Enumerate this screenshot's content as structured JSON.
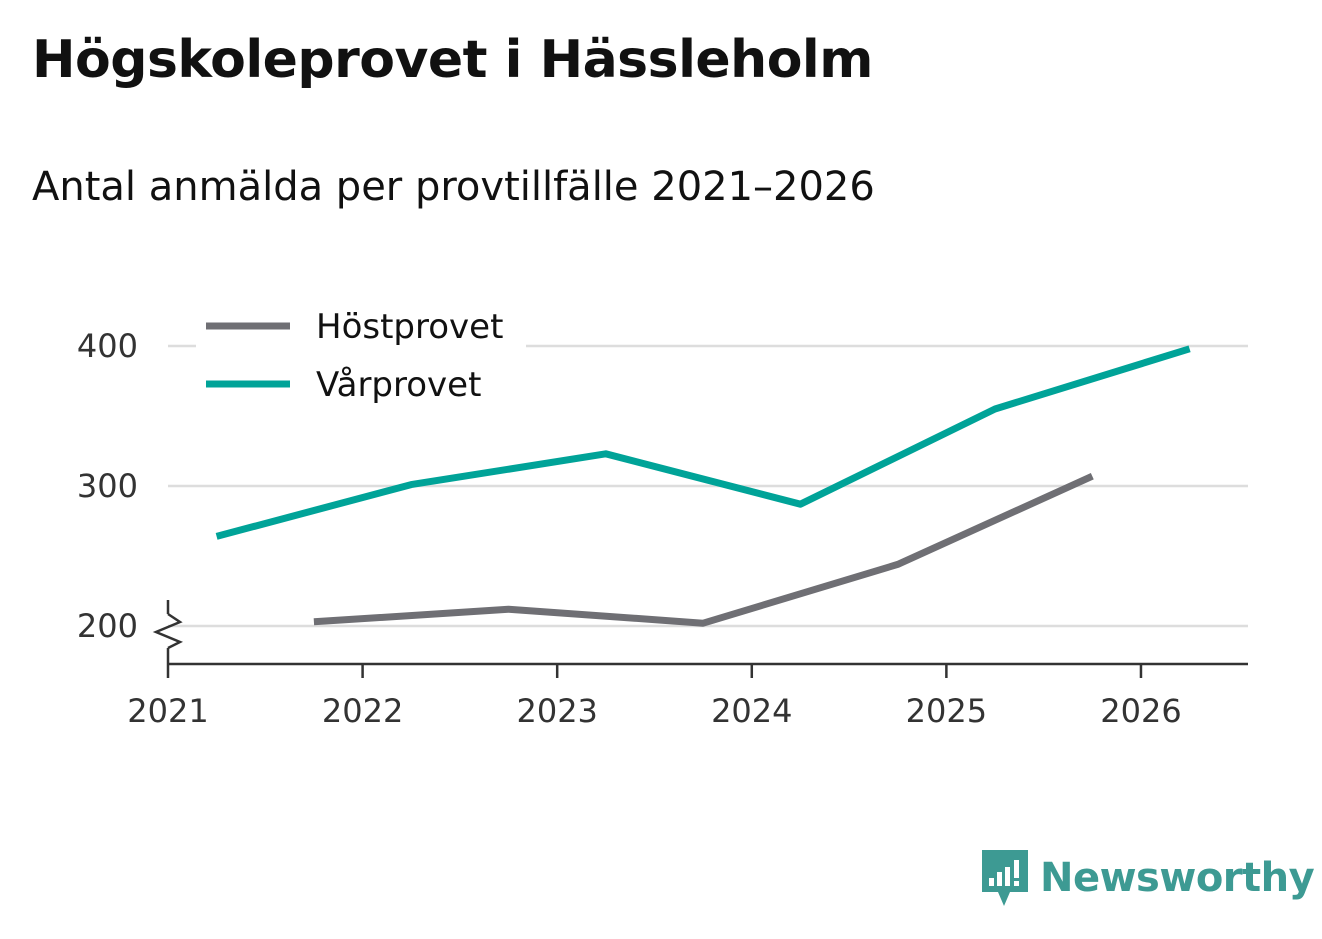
{
  "header": {
    "title": "Högskoleprovet i Hässleholm",
    "subtitle": "Antal anmälda per provtillfälle 2021–2026"
  },
  "brand": {
    "name": "Newsworthy",
    "color": "#3d9a93"
  },
  "chart_data": {
    "type": "line",
    "title": "Högskoleprovet i Hässleholm",
    "subtitle": "Antal anmälda per provtillfälle 2021–2026",
    "xlabel": "",
    "ylabel": "",
    "x_ticks": [
      "2021",
      "2022",
      "2023",
      "2024",
      "2025",
      "2026"
    ],
    "y_ticks": [
      200,
      300,
      400
    ],
    "xlim": [
      2021,
      2026.55
    ],
    "ylim": [
      173,
      400
    ],
    "y_axis_break": true,
    "grid": "horizontal",
    "legend_position": "top-left",
    "series": [
      {
        "name": "Höstprovet",
        "color": "#6f6f74",
        "x": [
          2021.75,
          2022.75,
          2023.75,
          2024.75,
          2025.75
        ],
        "values": [
          203,
          212,
          202,
          244,
          307
        ]
      },
      {
        "name": "Vårprovet",
        "color": "#00a398",
        "x": [
          2021.25,
          2022.25,
          2023.25,
          2024.25,
          2025.25,
          2026.25
        ],
        "values": [
          264,
          301,
          323,
          287,
          355,
          398
        ]
      }
    ]
  }
}
